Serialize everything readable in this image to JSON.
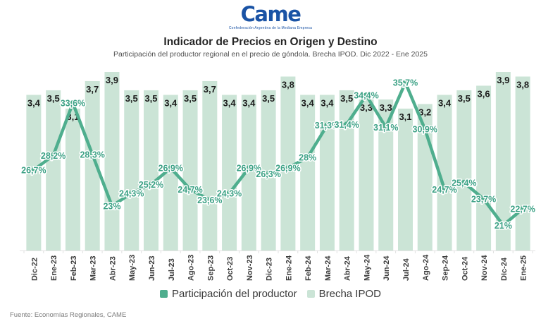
{
  "logo": {
    "brand": "Came",
    "tagline": "Confederación Argentina de la Mediana Empresa"
  },
  "header": {
    "title": "Indicador de Precios en Origen y Destino",
    "subtitle": "Participación del productor regional en el precio de góndola. Brecha IPOD. Dic 2022 - Ene 2025"
  },
  "chart_data": {
    "type": "combo",
    "title": "Indicador de Precios en Origen y Destino",
    "categories": [
      "Dic-22",
      "Ene-23",
      "Feb-23",
      "Mar-23",
      "Abr-23",
      "May-23",
      "Jun-23",
      "Jul-23",
      "Ago-23",
      "Sep-23",
      "Oct-23",
      "Nov-23",
      "Dic-23",
      "Ene-24",
      "Feb-24",
      "Mar-24",
      "Abr-24",
      "May-24",
      "Jun-24",
      "Jul-24",
      "Ago-24",
      "Sep-24",
      "Oct-24",
      "Nov-24",
      "Dic-24",
      "Ene-25"
    ],
    "series": [
      {
        "name": "Brecha IPOD",
        "type": "bar",
        "color": "#cbe4d6",
        "values": [
          3.4,
          3.5,
          3.1,
          3.7,
          3.9,
          3.5,
          3.5,
          3.4,
          3.5,
          3.7,
          3.4,
          3.4,
          3.5,
          3.8,
          3.4,
          3.4,
          3.5,
          3.3,
          3.3,
          3.1,
          3.2,
          3.4,
          3.5,
          3.6,
          3.9,
          3.8
        ],
        "data_labels": [
          "3,4",
          "3,5",
          "3,1",
          "3,7",
          "3,9",
          "3,5",
          "3,5",
          "3,4",
          "3,5",
          "3,7",
          "3,4",
          "3,4",
          "3,5",
          "3,8",
          "3,4",
          "3,4",
          "3,5",
          "3,3",
          "3,3",
          "3,1",
          "3,2",
          "3,4",
          "3,5",
          "3,6",
          "3,9",
          "3,8"
        ]
      },
      {
        "name": "Participación del productor",
        "type": "line",
        "color": "#4fae8e",
        "values": [
          26.7,
          28.2,
          33.6,
          28.3,
          23,
          24.3,
          25.2,
          26.9,
          24.7,
          23.6,
          24.3,
          26.9,
          26.3,
          26.9,
          28,
          31.3,
          31.4,
          34.4,
          31.1,
          35.7,
          30.9,
          24.7,
          25.4,
          23.7,
          21,
          22.7
        ],
        "data_labels": [
          "26,7%",
          "28,2%",
          "33,6%",
          "28,3%",
          "23%",
          "24,3%",
          "25,2%",
          "26,9%",
          "24,7%",
          "23,6%",
          "24,3%",
          "26,9%",
          "26,3%",
          "26,9%",
          "28%",
          "31,3%",
          "31,4%",
          "34,4%",
          "31,1%",
          "35,7%",
          "30,9%",
          "24,7%",
          "25,4%",
          "23,7%",
          "21%",
          "22,7%"
        ],
        "label_fill": "#3da286"
      }
    ],
    "bar_axis_range": [
      0,
      3.9
    ],
    "line_axis_range": [
      18.4,
      36.8
    ],
    "grid": false,
    "legend_position": "bottom"
  },
  "legend": {
    "items": [
      {
        "label": "Participación del productor",
        "color": "#4fae8e"
      },
      {
        "label": "Brecha IPOD",
        "color": "#cbe4d6"
      }
    ]
  },
  "footer": {
    "source": "Fuente: Economías Regionales, CAME"
  }
}
